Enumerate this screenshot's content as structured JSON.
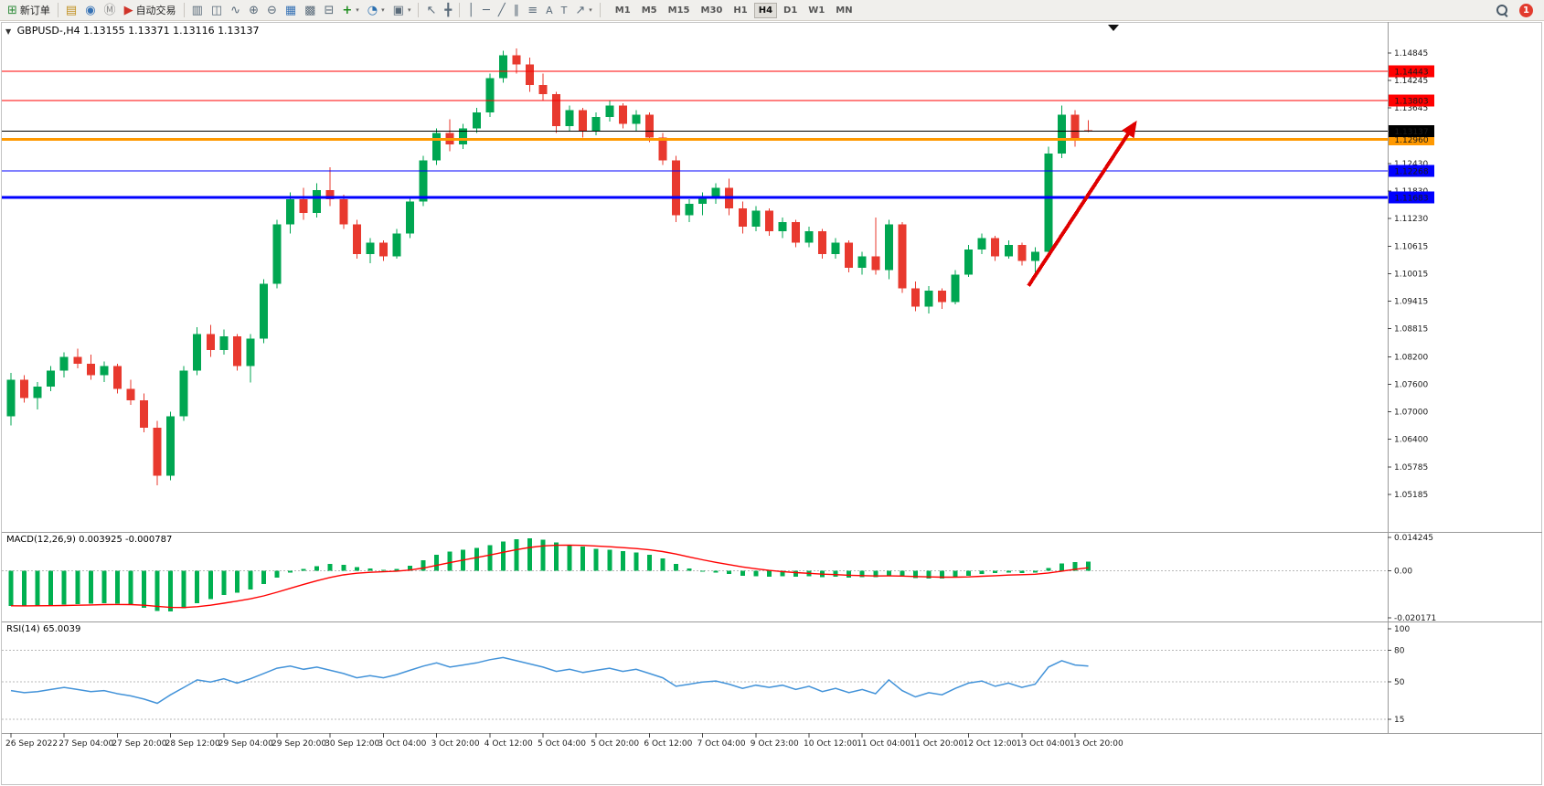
{
  "icons": {
    "new-order": "⊞",
    "new-chart": "▤",
    "profiles": "◉",
    "metaquotes": "Ⓜ",
    "autotrading-play": "▶",
    "bar-chart": "▥",
    "candlestick-chart": "◫",
    "line-chart": "∿",
    "zoom-in": "⊕",
    "zoom-out": "⊖",
    "tile-windows": "▦",
    "cascade-windows": "▩",
    "arrange-windows": "⊟",
    "indicators-add": "+",
    "periods": "◔",
    "templates": "▣",
    "cursor": "↖",
    "crosshair": "╋",
    "vertical-line": "│",
    "horizontal-line": "─",
    "trendline": "╱",
    "channel": "∥",
    "fibonacci": "≡",
    "text": "A",
    "text-label": "T",
    "arrows": "↗",
    "dropdown": "▾",
    "symbol-caret": "▼"
  },
  "toolbar": {
    "new_order_label": "新订单",
    "autotrading_label": "自动交易",
    "timeframes": [
      "M1",
      "M5",
      "M15",
      "M30",
      "H1",
      "H4",
      "D1",
      "W1",
      "MN"
    ],
    "active_timeframe": "H4",
    "notification_badge": "1"
  },
  "chart_header": {
    "symbol_period": "GBPUSD-,H4",
    "ohlc_text": "1.13155 1.13371 1.13116 1.13137"
  },
  "chart_data": {
    "type": "candlestick",
    "symbol": "GBPUSD-",
    "period": "H4",
    "current_bar": {
      "open": 1.13155,
      "high": 1.13371,
      "low": 1.13116,
      "close": 1.13137
    },
    "current_price": 1.13137,
    "current_price_label": "1.13137",
    "x_labels": [
      "26 Sep 2022",
      "27 Sep 04:00",
      "27 Sep 20:00",
      "28 Sep 12:00",
      "29 Sep 04:00",
      "29 Sep 20:00",
      "30 Sep 12:00",
      "3 Oct 04:00",
      "3 Oct 20:00",
      "4 Oct 12:00",
      "5 Oct 04:00",
      "5 Oct 20:00",
      "6 Oct 12:00",
      "7 Oct 04:00",
      "9 Oct 23:00",
      "10 Oct 12:00",
      "11 Oct 04:00",
      "11 Oct 20:00",
      "12 Oct 12:00",
      "13 Oct 04:00",
      "13 Oct 20:00"
    ],
    "price_axis_ticks": [
      "1.14845",
      "1.14245",
      "1.13645",
      "1.12430",
      "1.11830",
      "1.11230",
      "1.10615",
      "1.10015",
      "1.09415",
      "1.08815",
      "1.08200",
      "1.07600",
      "1.07000",
      "1.06400",
      "1.05785",
      "1.05185"
    ],
    "horizontal_lines": [
      {
        "label": "1.14443",
        "price": 1.14443,
        "color": "#FF0000",
        "width": 1
      },
      {
        "label": "1.13803",
        "price": 1.13803,
        "color": "#FF0000",
        "width": 1
      },
      {
        "label": "1.12960",
        "price": 1.1296,
        "color": "#FF9900",
        "width": 3
      },
      {
        "label": "1.12268",
        "price": 1.12268,
        "color": "#0000FF",
        "width": 1
      },
      {
        "label": "1.11683",
        "price": 1.11683,
        "color": "#0000FF",
        "width": 3
      }
    ],
    "annotation_arrow": {
      "color": "#E00000",
      "from_bar": 76.5,
      "from_price": 1.0975,
      "to_bar": 84.5,
      "to_price": 1.133,
      "direction": "up-right"
    },
    "colors": {
      "up": "#00A651",
      "down": "#E8392E",
      "macd_histogram": "#00B050",
      "macd_signal": "#FF0000",
      "rsi_line": "#4393D9"
    },
    "candles_ohlc": [
      [
        1.069,
        1.0785,
        1.067,
        1.077
      ],
      [
        1.077,
        1.078,
        1.072,
        1.073
      ],
      [
        1.073,
        1.0765,
        1.0705,
        1.0755
      ],
      [
        1.0755,
        1.08,
        1.0745,
        1.079
      ],
      [
        1.079,
        1.083,
        1.0775,
        1.082
      ],
      [
        1.082,
        1.0838,
        1.0795,
        1.0805
      ],
      [
        1.0805,
        1.0825,
        1.077,
        1.078
      ],
      [
        1.078,
        1.081,
        1.0765,
        1.08
      ],
      [
        1.08,
        1.0805,
        1.074,
        1.075
      ],
      [
        1.075,
        1.077,
        1.0715,
        1.0725
      ],
      [
        1.0725,
        1.074,
        1.0655,
        1.0665
      ],
      [
        1.0665,
        1.068,
        1.0539,
        1.056
      ],
      [
        1.056,
        1.07,
        1.055,
        1.069
      ],
      [
        1.069,
        1.08,
        1.068,
        1.079
      ],
      [
        1.079,
        1.0885,
        1.078,
        1.087
      ],
      [
        1.087,
        1.089,
        1.082,
        1.0835
      ],
      [
        1.0835,
        1.088,
        1.0825,
        1.0865
      ],
      [
        1.0865,
        1.087,
        1.079,
        1.08
      ],
      [
        1.08,
        1.087,
        1.0764,
        1.086
      ],
      [
        1.086,
        1.099,
        1.085,
        1.098
      ],
      [
        1.098,
        1.112,
        1.097,
        1.111
      ],
      [
        1.111,
        1.118,
        1.109,
        1.1165
      ],
      [
        1.1165,
        1.119,
        1.112,
        1.1135
      ],
      [
        1.1135,
        1.12,
        1.1125,
        1.1185
      ],
      [
        1.1185,
        1.1235,
        1.115,
        1.1165
      ],
      [
        1.1165,
        1.1175,
        1.11,
        1.111
      ],
      [
        1.111,
        1.112,
        1.1035,
        1.1045
      ],
      [
        1.1045,
        1.108,
        1.1025,
        1.107
      ],
      [
        1.107,
        1.1075,
        1.103,
        1.104
      ],
      [
        1.104,
        1.11,
        1.1035,
        1.109
      ],
      [
        1.109,
        1.117,
        1.108,
        1.116
      ],
      [
        1.116,
        1.126,
        1.115,
        1.125
      ],
      [
        1.125,
        1.132,
        1.124,
        1.131
      ],
      [
        1.131,
        1.134,
        1.127,
        1.1285
      ],
      [
        1.1285,
        1.133,
        1.1275,
        1.132
      ],
      [
        1.132,
        1.1365,
        1.131,
        1.1355
      ],
      [
        1.1355,
        1.144,
        1.1345,
        1.143
      ],
      [
        1.143,
        1.149,
        1.142,
        1.148
      ],
      [
        1.148,
        1.1495,
        1.144,
        1.146
      ],
      [
        1.146,
        1.1475,
        1.14,
        1.1415
      ],
      [
        1.1415,
        1.144,
        1.138,
        1.1395
      ],
      [
        1.1395,
        1.14,
        1.131,
        1.1325
      ],
      [
        1.1325,
        1.137,
        1.1315,
        1.136
      ],
      [
        1.136,
        1.1365,
        1.13,
        1.1315
      ],
      [
        1.1315,
        1.1355,
        1.1305,
        1.1345
      ],
      [
        1.1345,
        1.138,
        1.1335,
        1.137
      ],
      [
        1.137,
        1.1375,
        1.132,
        1.133
      ],
      [
        1.133,
        1.136,
        1.1315,
        1.135
      ],
      [
        1.135,
        1.1355,
        1.129,
        1.13
      ],
      [
        1.13,
        1.131,
        1.124,
        1.125
      ],
      [
        1.125,
        1.126,
        1.1115,
        1.113
      ],
      [
        1.113,
        1.1165,
        1.1115,
        1.1155
      ],
      [
        1.1155,
        1.118,
        1.113,
        1.117
      ],
      [
        1.117,
        1.12,
        1.1155,
        1.119
      ],
      [
        1.119,
        1.121,
        1.113,
        1.1145
      ],
      [
        1.1145,
        1.116,
        1.109,
        1.1105
      ],
      [
        1.1105,
        1.115,
        1.1095,
        1.114
      ],
      [
        1.114,
        1.1145,
        1.1085,
        1.1095
      ],
      [
        1.1095,
        1.1125,
        1.108,
        1.1115
      ],
      [
        1.1115,
        1.112,
        1.106,
        1.107
      ],
      [
        1.107,
        1.1105,
        1.106,
        1.1095
      ],
      [
        1.1095,
        1.11,
        1.1035,
        1.1045
      ],
      [
        1.1045,
        1.108,
        1.1035,
        1.107
      ],
      [
        1.107,
        1.1075,
        1.1005,
        1.1015
      ],
      [
        1.1015,
        1.105,
        1.1,
        1.104
      ],
      [
        1.104,
        1.1125,
        1.1,
        1.101
      ],
      [
        1.101,
        1.112,
        1.099,
        1.111
      ],
      [
        1.111,
        1.1115,
        1.096,
        1.097
      ],
      [
        1.097,
        1.0985,
        1.092,
        1.093
      ],
      [
        1.093,
        1.0975,
        1.0915,
        1.0965
      ],
      [
        1.0965,
        1.097,
        1.0925,
        1.094
      ],
      [
        1.094,
        1.101,
        1.0935,
        1.1
      ],
      [
        1.1,
        1.1065,
        1.0995,
        1.1055
      ],
      [
        1.1055,
        1.109,
        1.1045,
        1.108
      ],
      [
        1.108,
        1.1085,
        1.103,
        1.104
      ],
      [
        1.104,
        1.1075,
        1.1035,
        1.1065
      ],
      [
        1.1065,
        1.107,
        1.102,
        1.103
      ],
      [
        1.103,
        1.106,
        1.1005,
        1.105
      ],
      [
        1.105,
        1.128,
        1.104,
        1.1265
      ],
      [
        1.1265,
        1.137,
        1.1255,
        1.135
      ],
      [
        1.135,
        1.136,
        1.128,
        1.1295
      ],
      [
        1.13155,
        1.13371,
        1.13116,
        1.13137
      ]
    ],
    "indicators": {
      "macd": {
        "label": "MACD(12,26,9)",
        "values_text": "0.003925 -0.000787",
        "axis_ticks": [
          "0.014245",
          "0.00",
          "-0.020171"
        ],
        "axis_tick_values": [
          0.014245,
          0,
          -0.020171
        ],
        "histogram": [
          -0.015,
          -0.0152,
          -0.015,
          -0.0148,
          -0.0145,
          -0.0143,
          -0.0142,
          -0.014,
          -0.0142,
          -0.0148,
          -0.0158,
          -0.0172,
          -0.0175,
          -0.016,
          -0.014,
          -0.0122,
          -0.0105,
          -0.0095,
          -0.008,
          -0.0058,
          -0.003,
          -0.0008,
          0.0008,
          0.002,
          0.0028,
          0.0026,
          0.0016,
          0.001,
          0.0004,
          0.0008,
          0.0022,
          0.0045,
          0.0068,
          0.0082,
          0.009,
          0.0098,
          0.011,
          0.0125,
          0.0135,
          0.0138,
          0.0132,
          0.012,
          0.0112,
          0.0104,
          0.0094,
          0.009,
          0.0084,
          0.0078,
          0.0068,
          0.0052,
          0.0028,
          0.001,
          -0.0002,
          -0.0008,
          -0.0014,
          -0.0022,
          -0.0024,
          -0.0026,
          -0.0024,
          -0.0026,
          -0.0024,
          -0.0028,
          -0.0026,
          -0.003,
          -0.0028,
          -0.0028,
          -0.0022,
          -0.0026,
          -0.0032,
          -0.0033,
          -0.0033,
          -0.0028,
          -0.0021,
          -0.0014,
          -0.0011,
          -0.0009,
          -0.001,
          -0.0008,
          0.0012,
          0.003,
          0.0037,
          0.0039
        ]
      },
      "rsi": {
        "label": "RSI(14)",
        "value_text": "65.0039",
        "axis_ticks": [
          "100",
          "80",
          "50",
          "15"
        ],
        "level_lines": [
          80,
          50,
          15
        ],
        "values": [
          42,
          40,
          41,
          43,
          45,
          43,
          41,
          42,
          39,
          37,
          34,
          30,
          38,
          45,
          52,
          50,
          53,
          49,
          53,
          58,
          63,
          65,
          62,
          64,
          61,
          58,
          54,
          56,
          54,
          57,
          61,
          65,
          68,
          64,
          66,
          68,
          71,
          73,
          70,
          67,
          64,
          60,
          62,
          59,
          61,
          63,
          60,
          62,
          58,
          54,
          46,
          48,
          50,
          51,
          48,
          44,
          47,
          45,
          47,
          43,
          46,
          41,
          44,
          40,
          43,
          39,
          52,
          42,
          36,
          40,
          38,
          44,
          49,
          51,
          46,
          49,
          45,
          48,
          64,
          70,
          66,
          65
        ]
      }
    }
  }
}
